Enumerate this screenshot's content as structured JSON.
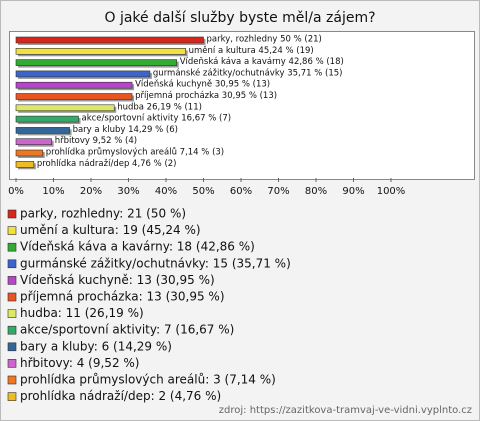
{
  "chart_data": {
    "type": "bar",
    "orientation": "horizontal",
    "title": "O jaké další služby byste měl/a zájem?",
    "values": [
      50,
      45.24,
      42.86,
      35.71,
      30.95,
      30.95,
      26.19,
      16.67,
      14.29,
      9.52,
      7.14,
      4.76
    ],
    "value_labels": [
      "parky, rozhledny 50 % (21)",
      "umění a kultura 45,24 % (19)",
      "Vídeňská káva a kavárny 42,86 % (18)",
      "gurmánské zážitky/ochutnávky 35,71 % (15)",
      "Vídeňská kuchyně 30,95 % (13)",
      "příjemná procházka 30,95 % (13)",
      "hudba 26,19 % (11)",
      "akce/sportovní aktivity 16,67 % (7)",
      "bary a kluby 14,29 % (6)",
      "hřbitovy 9,52 % (4)",
      "prohlídka průmyslových areálů 7,14 % (3)",
      "prohlídka nádraží/dep 4,76 % (2)"
    ],
    "legend_labels": [
      "parky, rozhledny: 21 (50 %)",
      "umění a kultura: 19 (45,24 %)",
      "Vídeňská káva a kavárny: 18 (42,86 %)",
      "gurmánské zážitky/ochutnávky: 15 (35,71 %)",
      "Vídeňská kuchyně: 13 (30,95 %)",
      "příjemná procházka: 13 (30,95 %)",
      "hudba: 11 (26,19 %)",
      "akce/sportovní aktivity: 7 (16,67 %)",
      "bary a kluby: 6 (14,29 %)",
      "hřbitovy: 4 (9,52 %)",
      "prohlídka průmyslových areálů: 3 (7,14 %)",
      "prohlídka nádraží/dep: 2 (4,76 %)"
    ],
    "colors": [
      "#d9261c",
      "#f0e040",
      "#33aa33",
      "#3a66cc",
      "#b844cc",
      "#e65522",
      "#dde866",
      "#33aa66",
      "#336699",
      "#cc66cc",
      "#ee7722",
      "#eebb22"
    ],
    "xlim": [
      0,
      100
    ],
    "xticks": [
      {
        "value": 0,
        "label": "0%"
      },
      {
        "value": 10,
        "label": "10%"
      },
      {
        "value": 20,
        "label": "20%"
      },
      {
        "value": 30,
        "label": "30%"
      },
      {
        "value": 40,
        "label": "40%"
      },
      {
        "value": 50,
        "label": "50%"
      },
      {
        "value": 60,
        "label": "60%"
      },
      {
        "value": 70,
        "label": "70%"
      },
      {
        "value": 80,
        "label": "80%"
      },
      {
        "value": 90,
        "label": "90%"
      },
      {
        "value": 100,
        "label": "100%"
      }
    ],
    "source": "zdroj: https://zazitkova-tramvaj-ve-vidni.vyplnto.cz"
  }
}
